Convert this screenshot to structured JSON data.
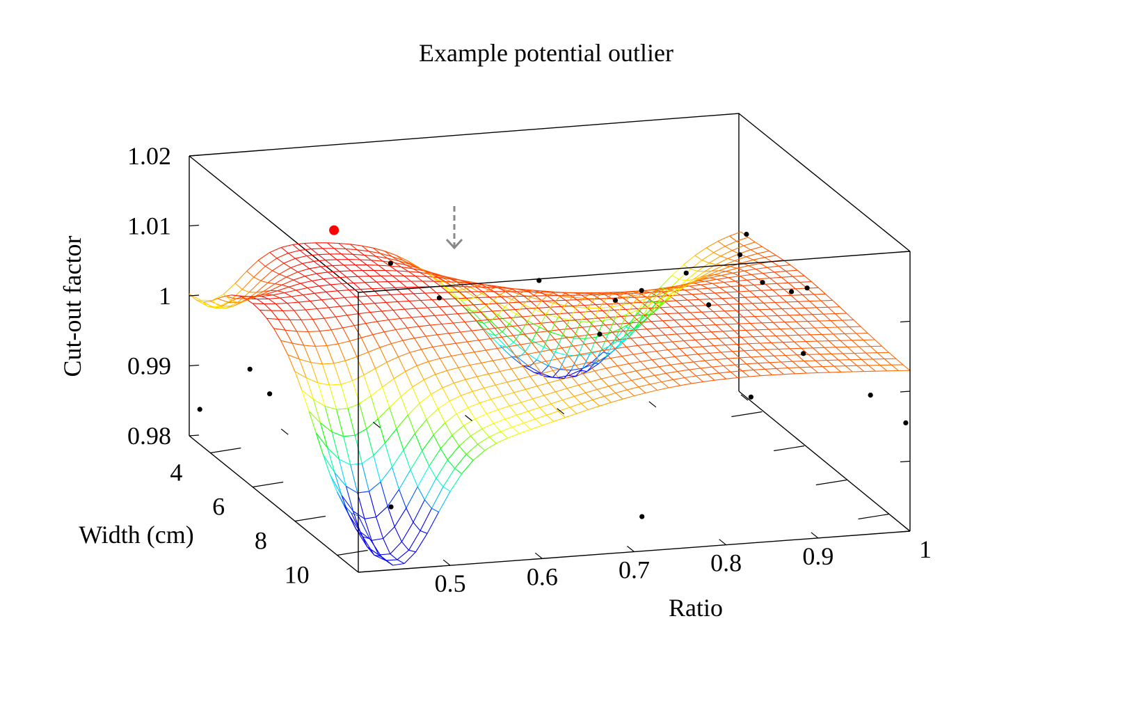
{
  "chart_data": {
    "type": "surface3d",
    "title": "Example potential outlier",
    "xlabel": "Ratio",
    "ylabel": "Width (cm)",
    "zlabel": "Cut-out factor",
    "x_ticks": [
      "0.5",
      "0.6",
      "0.7",
      "0.8",
      "0.9",
      "1"
    ],
    "y_ticks": [
      "4",
      "6",
      "8",
      "10"
    ],
    "z_ticks": [
      "1.02",
      "1.01",
      "1",
      "0.99",
      "0.98"
    ],
    "xlim": [
      0.4,
      1.0
    ],
    "ylim": [
      3,
      11
    ],
    "zlim": [
      0.98,
      1.02
    ],
    "colormap": [
      "#0000ff",
      "#00ffff",
      "#00ff00",
      "#ffff00",
      "#ff8000",
      "#ff0000"
    ],
    "grid": false,
    "surface": {
      "description_values": "fitted surface sampled on a regular mesh over ratio and width",
      "x_range": [
        0.4,
        1.0
      ],
      "y_range": [
        3,
        11
      ]
    },
    "points": [
      {
        "ratio": 0.5,
        "width": 5.5,
        "factor": 1.0145,
        "outlier": true
      },
      {
        "ratio": 0.55,
        "width": 6.0,
        "factor": 1.0105
      },
      {
        "ratio": 0.58,
        "width": 7.0,
        "factor": 1.0077
      },
      {
        "ratio": 0.7,
        "width": 6.5,
        "factor": 1.0078
      },
      {
        "ratio": 0.72,
        "width": 8.5,
        "factor": 1.0048
      },
      {
        "ratio": 0.76,
        "width": 7.5,
        "factor": 1.0068
      },
      {
        "ratio": 0.8,
        "width": 7.0,
        "factor": 1.0066
      },
      {
        "ratio": 0.85,
        "width": 8.0,
        "factor": 1.0065
      },
      {
        "ratio": 0.86,
        "width": 6.5,
        "factor": 1.0073
      },
      {
        "ratio": 0.92,
        "width": 7.5,
        "factor": 1.0078
      },
      {
        "ratio": 0.93,
        "width": 6.0,
        "factor": 1.008
      },
      {
        "ratio": 0.94,
        "width": 8.0,
        "factor": 1.0075
      },
      {
        "ratio": 0.96,
        "width": 5.0,
        "factor": 1.0082
      },
      {
        "ratio": 0.98,
        "width": 7.0,
        "factor": 1.0052
      },
      {
        "ratio": 0.93,
        "width": 9.0,
        "factor": 1.0012
      },
      {
        "ratio": 0.85,
        "width": 10.0,
        "factor": 0.9982
      },
      {
        "ratio": 0.98,
        "width": 10.0,
        "factor": 0.9972
      },
      {
        "ratio": 1.0,
        "width": 10.8,
        "factor": 0.995
      },
      {
        "ratio": 0.42,
        "width": 5.0,
        "factor": 0.9942
      },
      {
        "ratio": 0.43,
        "width": 5.5,
        "factor": 0.9918
      },
      {
        "ratio": 0.4,
        "width": 3.5,
        "factor": 0.985
      },
      {
        "ratio": 0.47,
        "width": 9.5,
        "factor": 0.985
      },
      {
        "ratio": 0.72,
        "width": 10.5,
        "factor": 0.9836
      }
    ]
  }
}
